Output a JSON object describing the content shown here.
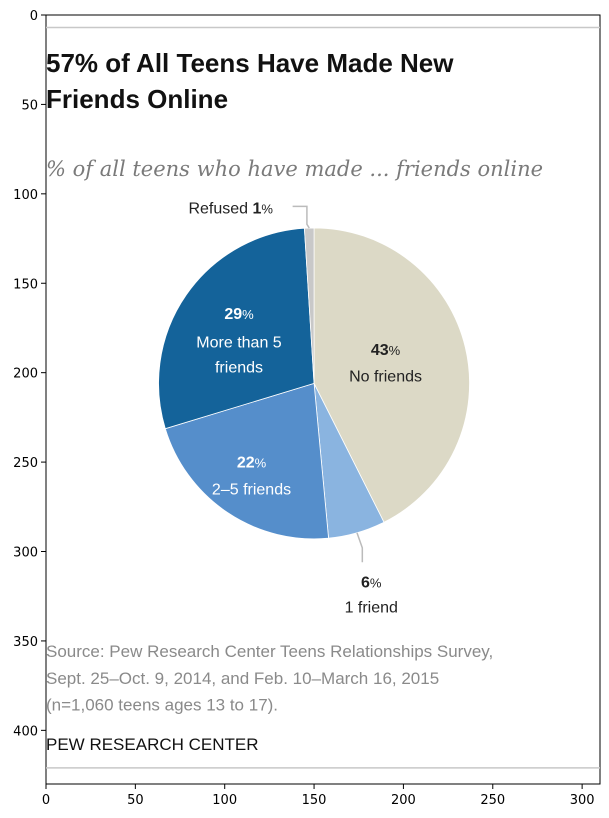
{
  "chart_data": {
    "type": "pie",
    "title": "57% of All Teens Have Made New Friends Online",
    "title_lines": [
      "57% of All Teens Have Made New",
      "Friends Online"
    ],
    "subtitle": "% of all teens who have made ... friends online",
    "slices": [
      {
        "label": "No friends",
        "value": 43,
        "color": "#dcd9c6",
        "text_color": "#222222"
      },
      {
        "label": "1 friend",
        "value": 6,
        "color": "#8ab4e0",
        "text_color": "#222222"
      },
      {
        "label": "2–5 friends",
        "value": 22,
        "color": "#558ecb",
        "text_color": "#ffffff"
      },
      {
        "label": "More than 5 friends",
        "value": 29,
        "color": "#14639a",
        "text_color": "#ffffff"
      },
      {
        "label": "Refused",
        "value": 1,
        "color": "#c8c8c8",
        "text_color": "#222222"
      }
    ],
    "source_lines": [
      "Source: Pew Research Center Teens Relationships Survey,",
      "Sept. 25–Oct. 9, 2014, and Feb. 10–March 16, 2015",
      "(n=1,060 teens ages 13 to 17)."
    ],
    "brand": "PEW RESEARCH CENTER",
    "x_ticks": [
      0,
      50,
      100,
      150,
      200,
      250,
      300
    ],
    "y_ticks": [
      0,
      50,
      100,
      150,
      200,
      250,
      300,
      350,
      400
    ],
    "xlim": [
      0,
      310
    ],
    "ylim": [
      0,
      430
    ]
  }
}
